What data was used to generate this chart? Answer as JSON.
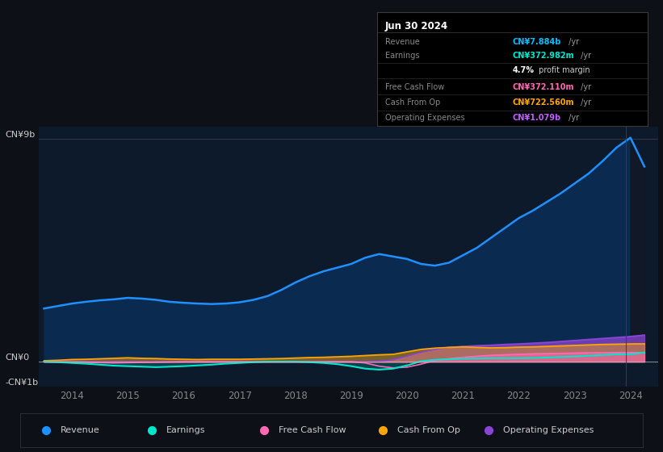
{
  "bg_color": "#0d1117",
  "chart_bg": "#0d1a2b",
  "chart_bg_right": "#111827",
  "title": "Jun 30 2024",
  "table_rows": [
    {
      "label": "Revenue",
      "value_bold": "CN¥7.884b",
      "value_rest": " /yr",
      "value_color": "#00bfff",
      "has_sub": false
    },
    {
      "label": "Earnings",
      "value_bold": "CN¥372.982m",
      "value_rest": " /yr",
      "value_color": "#00e5cc",
      "has_sub": true,
      "sub_bold": "4.7%",
      "sub_rest": " profit margin",
      "sub_color": "#ffffff"
    },
    {
      "label": "Free Cash Flow",
      "value_bold": "CN¥372.110m",
      "value_rest": " /yr",
      "value_color": "#ff69b4",
      "has_sub": false
    },
    {
      "label": "Cash From Op",
      "value_bold": "CN¥722.560m",
      "value_rest": " /yr",
      "value_color": "#ffa500",
      "has_sub": false
    },
    {
      "label": "Operating Expenses",
      "value_bold": "CN¥1.079b",
      "value_rest": " /yr",
      "value_color": "#bf5fff",
      "has_sub": false
    }
  ],
  "ylabel_top": "CN¥9b",
  "ylabel_zero": "CN¥0",
  "ylabel_bottom": "-CN¥1b",
  "x_years": [
    2013.5,
    2013.75,
    2014.0,
    2014.25,
    2014.5,
    2014.75,
    2015.0,
    2015.25,
    2015.5,
    2015.75,
    2016.0,
    2016.25,
    2016.5,
    2016.75,
    2017.0,
    2017.25,
    2017.5,
    2017.75,
    2018.0,
    2018.25,
    2018.5,
    2018.75,
    2019.0,
    2019.25,
    2019.5,
    2019.75,
    2020.0,
    2020.25,
    2020.5,
    2020.75,
    2021.0,
    2021.25,
    2021.5,
    2021.75,
    2022.0,
    2022.25,
    2022.5,
    2022.75,
    2023.0,
    2023.25,
    2023.5,
    2023.75,
    2024.0,
    2024.25
  ],
  "revenue": [
    2.15,
    2.25,
    2.35,
    2.42,
    2.48,
    2.52,
    2.58,
    2.55,
    2.5,
    2.42,
    2.38,
    2.35,
    2.33,
    2.35,
    2.4,
    2.5,
    2.65,
    2.9,
    3.2,
    3.45,
    3.65,
    3.8,
    3.95,
    4.2,
    4.35,
    4.25,
    4.15,
    3.95,
    3.88,
    4.0,
    4.3,
    4.6,
    5.0,
    5.4,
    5.8,
    6.1,
    6.45,
    6.8,
    7.2,
    7.6,
    8.1,
    8.65,
    9.05,
    7.884
  ],
  "earnings": [
    0.0,
    -0.02,
    -0.05,
    -0.08,
    -0.12,
    -0.16,
    -0.18,
    -0.2,
    -0.22,
    -0.2,
    -0.18,
    -0.15,
    -0.12,
    -0.08,
    -0.05,
    -0.02,
    0.0,
    0.0,
    0.0,
    -0.02,
    -0.05,
    -0.1,
    -0.18,
    -0.28,
    -0.32,
    -0.28,
    -0.15,
    0.02,
    0.08,
    0.1,
    0.12,
    0.13,
    0.14,
    0.14,
    0.14,
    0.15,
    0.17,
    0.19,
    0.21,
    0.24,
    0.27,
    0.3,
    0.3,
    0.373
  ],
  "free_cash_flow": [
    0.0,
    0.0,
    -0.01,
    -0.02,
    -0.04,
    -0.05,
    -0.04,
    -0.03,
    -0.02,
    -0.01,
    0.0,
    0.0,
    0.0,
    0.0,
    0.0,
    0.0,
    0.0,
    0.0,
    0.0,
    0.0,
    0.0,
    0.0,
    0.0,
    -0.05,
    -0.18,
    -0.25,
    -0.22,
    -0.1,
    0.05,
    0.12,
    0.18,
    0.22,
    0.26,
    0.28,
    0.3,
    0.32,
    0.33,
    0.34,
    0.35,
    0.36,
    0.36,
    0.37,
    0.37,
    0.372
  ],
  "cash_from_op": [
    0.04,
    0.06,
    0.09,
    0.1,
    0.12,
    0.14,
    0.16,
    0.14,
    0.13,
    0.11,
    0.1,
    0.09,
    0.1,
    0.1,
    0.1,
    0.11,
    0.12,
    0.13,
    0.15,
    0.17,
    0.18,
    0.2,
    0.22,
    0.25,
    0.28,
    0.3,
    0.4,
    0.5,
    0.55,
    0.58,
    0.6,
    0.58,
    0.56,
    0.57,
    0.59,
    0.6,
    0.62,
    0.64,
    0.66,
    0.68,
    0.7,
    0.71,
    0.72,
    0.7226
  ],
  "operating_expenses": [
    0.0,
    0.0,
    0.0,
    0.0,
    0.0,
    0.0,
    0.0,
    0.0,
    0.0,
    0.0,
    0.0,
    0.0,
    0.0,
    0.0,
    0.0,
    0.0,
    0.0,
    0.0,
    0.0,
    0.0,
    0.0,
    0.0,
    0.0,
    0.0,
    0.02,
    0.08,
    0.22,
    0.38,
    0.5,
    0.58,
    0.62,
    0.65,
    0.67,
    0.7,
    0.72,
    0.75,
    0.78,
    0.82,
    0.86,
    0.9,
    0.94,
    0.98,
    1.02,
    1.079
  ],
  "revenue_color": "#1e90ff",
  "revenue_fill": "#0a2a50",
  "earnings_color": "#00e5cc",
  "free_cash_flow_color": "#ff69b4",
  "cash_from_op_color": "#ffa500",
  "operating_expenses_color": "#8b45d4",
  "x_ticks": [
    2014,
    2015,
    2016,
    2017,
    2018,
    2019,
    2020,
    2021,
    2022,
    2023,
    2024
  ],
  "ylim": [
    -1.0,
    9.5
  ],
  "xmin": 2013.4,
  "xmax": 2024.5,
  "vertical_line_x": 2023.92,
  "legend_items": [
    {
      "label": "Revenue",
      "color": "#1e90ff"
    },
    {
      "label": "Earnings",
      "color": "#00e5cc"
    },
    {
      "label": "Free Cash Flow",
      "color": "#ff69b4"
    },
    {
      "label": "Cash From Op",
      "color": "#ffa500"
    },
    {
      "label": "Operating Expenses",
      "color": "#8b45d4"
    }
  ]
}
